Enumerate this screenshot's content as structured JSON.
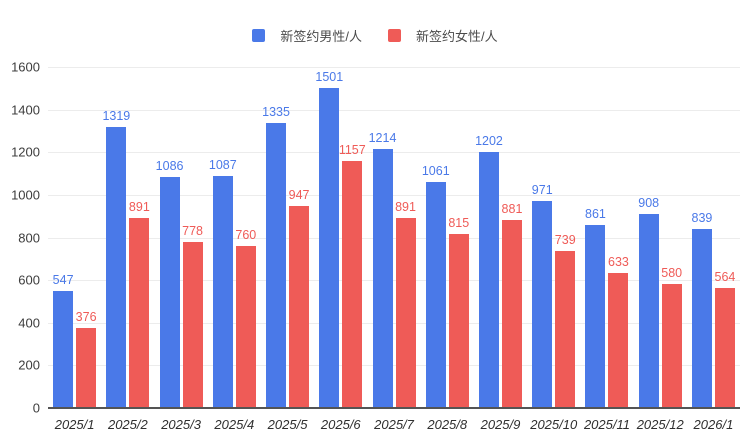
{
  "chart_data": {
    "type": "bar",
    "title": "",
    "categories": [
      "2025/1",
      "2025/2",
      "2025/3",
      "2025/4",
      "2025/5",
      "2025/6",
      "2025/7",
      "2025/8",
      "2025/9",
      "2025/10",
      "2025/11",
      "2025/12",
      "2026/1"
    ],
    "series": [
      {
        "name": "新签约男性/人",
        "color": "#4a79e8",
        "values": [
          547,
          1319,
          1086,
          1087,
          1335,
          1501,
          1214,
          1061,
          1202,
          971,
          861,
          908,
          839
        ]
      },
      {
        "name": "新签约女性/人",
        "color": "#ef5b57",
        "values": [
          376,
          891,
          778,
          760,
          947,
          1157,
          891,
          815,
          881,
          739,
          633,
          580,
          564
        ]
      }
    ],
    "xlabel": "",
    "ylabel": "",
    "ylim": [
      0,
      1600
    ],
    "ytick_step": 200,
    "grid": true,
    "legend_position": "top",
    "value_labels": true
  },
  "colors": {
    "background": "#ffffff",
    "gridline": "#ececec",
    "axis_line": "#545454",
    "y_tick_text": "#3d3d3d",
    "x_tick_text": "#2f2f2f",
    "legend_text": "#4b4b4b"
  }
}
